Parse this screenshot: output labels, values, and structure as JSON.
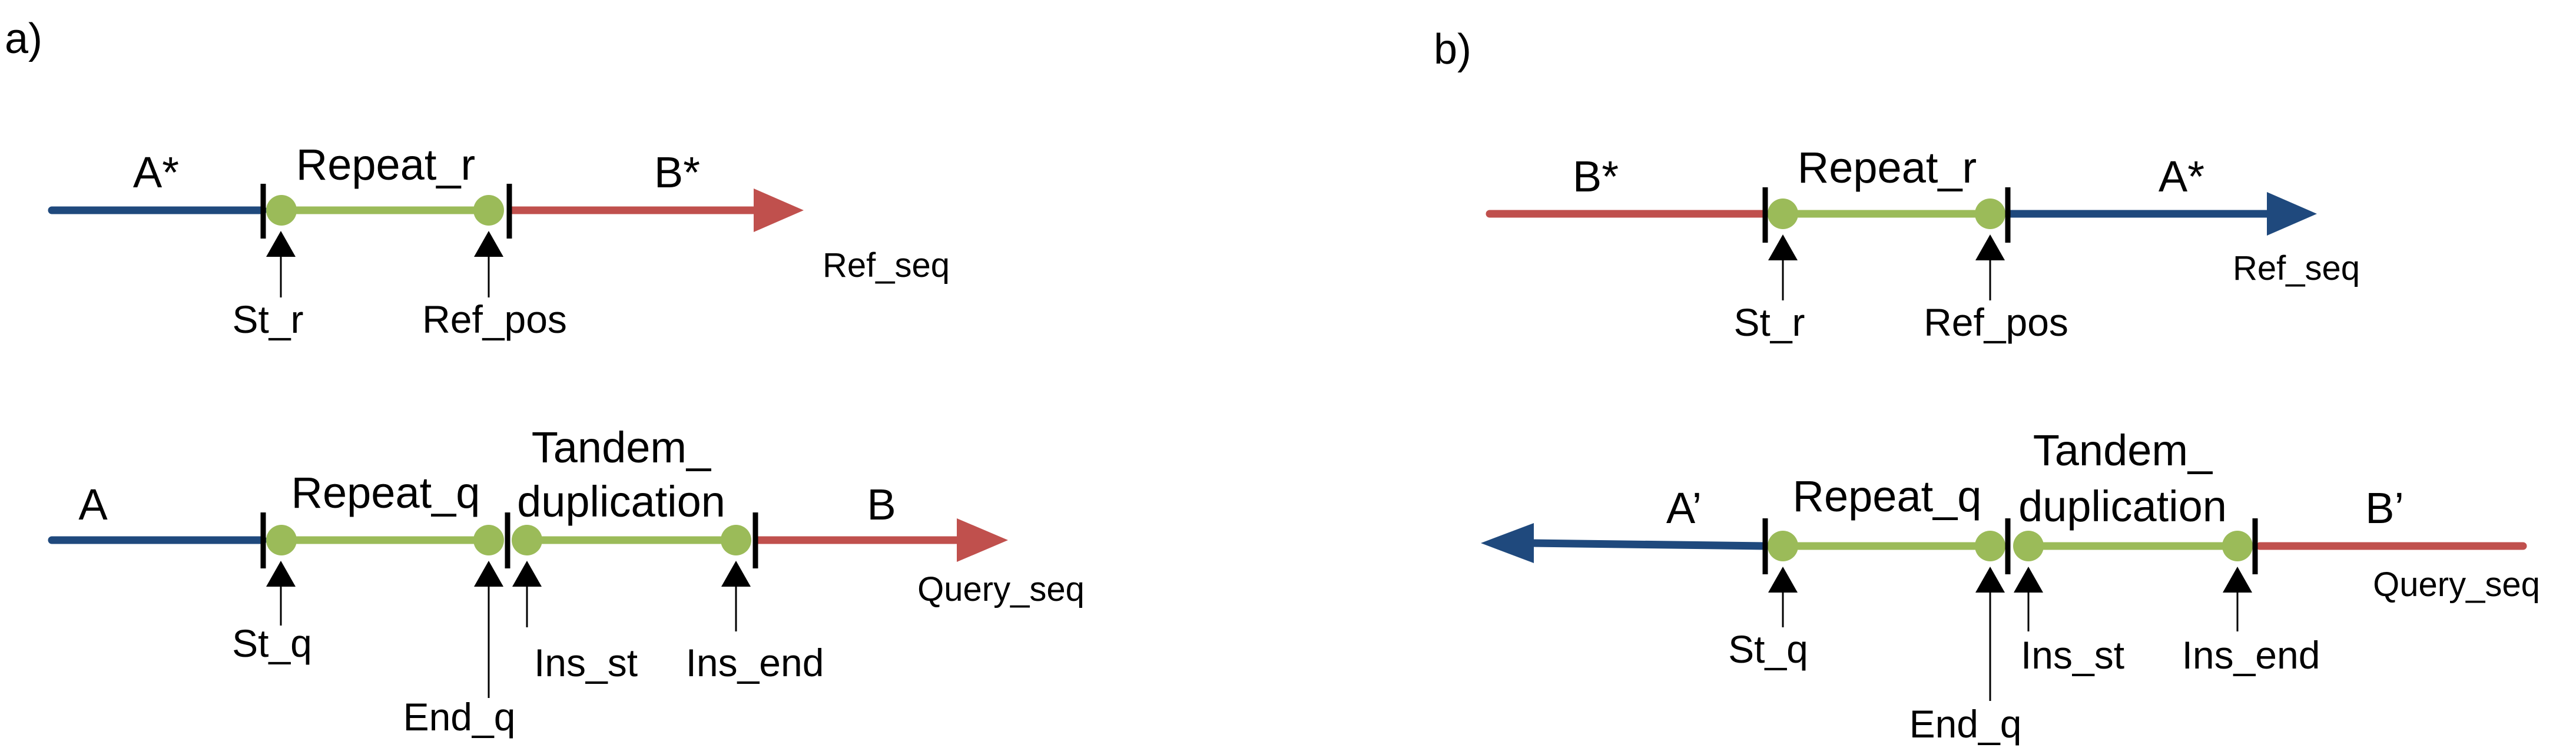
{
  "colors": {
    "blue": "#1f497d",
    "red": "#c0504d",
    "green": "#9bbb59",
    "black": "#000000"
  },
  "panel_a": {
    "label": "a)",
    "ref": {
      "left_segment": "A*",
      "repeat": "Repeat_r",
      "right_segment": "B*",
      "seq_label": "Ref_seq",
      "marker_start": "St_r",
      "marker_pos": "Ref_pos"
    },
    "query": {
      "left_segment": "A",
      "repeat": "Repeat_q",
      "dup_line1": "Tandem_",
      "dup_line2": "duplication",
      "right_segment": "B",
      "seq_label": "Query_seq",
      "marker_start": "St_q",
      "marker_end": "End_q",
      "marker_ins_st": "Ins_st",
      "marker_ins_end": "Ins_end"
    }
  },
  "panel_b": {
    "label": "b)",
    "ref": {
      "left_segment": "B*",
      "repeat": "Repeat_r",
      "right_segment": "A*",
      "seq_label": "Ref_seq",
      "marker_start": "St_r",
      "marker_pos": "Ref_pos"
    },
    "query": {
      "left_segment": "A’",
      "repeat": "Repeat_q",
      "dup_line1": "Tandem_",
      "dup_line2": "duplication",
      "right_segment": "B’",
      "seq_label": "Query_seq",
      "marker_start": "St_q",
      "marker_end": "End_q",
      "marker_ins_st": "Ins_st",
      "marker_ins_end": "Ins_end"
    }
  }
}
